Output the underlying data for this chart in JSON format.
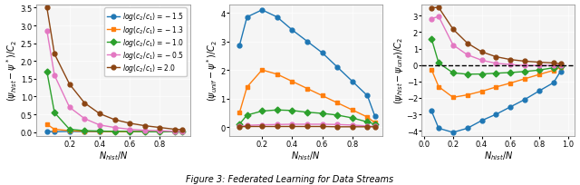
{
  "legend_labels": [
    "$log(c_2/c_1) = -1.5$",
    "$log(c_2/c_1) = -1.3$",
    "$log(c_2/c_1) = -1.0$",
    "$log(c_2/c_1) = -0.5$",
    "$log(c_2/c_1) = 2.0$"
  ],
  "colors": [
    "#1f77b4",
    "#ff7f0e",
    "#2ca02c",
    "#e377c2",
    "#8B4513"
  ],
  "markers": [
    "o",
    "s",
    "D",
    "o",
    "o"
  ],
  "x_values": [
    0.05,
    0.1,
    0.2,
    0.3,
    0.4,
    0.5,
    0.6,
    0.7,
    0.8,
    0.9,
    0.95
  ],
  "plot1_ylabel": "$(\\psi_{hist} - \\psi^*)/C_2$",
  "plot2_ylabel": "$(\\psi_{unif} - \\psi^*)/C_2$",
  "plot3_ylabel": "$(\\psi_{hist} - \\psi_{unif})/C_2$",
  "xlabel": "$N_{hist}/N$",
  "plot1_data": [
    [
      0.02,
      0.01,
      0.02,
      0.01,
      0.01,
      0.01,
      0.01,
      0.01,
      0.01,
      0.01,
      0.01
    ],
    [
      0.22,
      0.08,
      0.04,
      0.02,
      0.02,
      0.01,
      0.01,
      0.01,
      0.01,
      0.01,
      0.01
    ],
    [
      1.7,
      0.55,
      0.08,
      0.04,
      0.03,
      0.02,
      0.02,
      0.01,
      0.01,
      0.01,
      0.01
    ],
    [
      2.85,
      1.6,
      0.7,
      0.38,
      0.2,
      0.13,
      0.08,
      0.05,
      0.04,
      0.02,
      0.02
    ],
    [
      3.5,
      2.2,
      1.35,
      0.82,
      0.52,
      0.35,
      0.25,
      0.18,
      0.13,
      0.08,
      0.07
    ]
  ],
  "plot2_data": [
    [
      2.85,
      3.85,
      4.1,
      3.85,
      3.4,
      3.0,
      2.6,
      2.1,
      1.6,
      1.1,
      0.38
    ],
    [
      0.5,
      1.4,
      2.0,
      1.85,
      1.6,
      1.35,
      1.1,
      0.85,
      0.6,
      0.35,
      0.15
    ],
    [
      0.1,
      0.42,
      0.56,
      0.6,
      0.58,
      0.52,
      0.48,
      0.42,
      0.32,
      0.18,
      0.1
    ],
    [
      0.02,
      0.06,
      0.08,
      0.09,
      0.1,
      0.1,
      0.1,
      0.09,
      0.07,
      0.04,
      0.02
    ],
    [
      0.01,
      0.02,
      0.02,
      0.02,
      0.02,
      0.02,
      0.02,
      0.01,
      0.01,
      0.01,
      0.01
    ]
  ],
  "plot3_data": [
    [
      -2.8,
      -3.85,
      -4.1,
      -3.85,
      -3.38,
      -3.0,
      -2.55,
      -2.1,
      -1.58,
      -1.08,
      -0.38
    ],
    [
      -0.28,
      -1.32,
      -1.97,
      -1.82,
      -1.6,
      -1.34,
      -1.1,
      -0.84,
      -0.58,
      -0.33,
      -0.14
    ],
    [
      1.6,
      0.12,
      -0.48,
      -0.56,
      -0.55,
      -0.5,
      -0.46,
      -0.4,
      -0.31,
      -0.17,
      -0.09
    ],
    [
      2.82,
      2.95,
      1.22,
      0.62,
      0.29,
      0.1,
      0.03,
      -0.04,
      -0.03,
      -0.02,
      0.0
    ],
    [
      3.48,
      3.5,
      2.18,
      1.33,
      0.8,
      0.5,
      0.33,
      0.23,
      0.17,
      0.12,
      0.07
    ]
  ],
  "plot1_ylim": [
    -0.1,
    3.6
  ],
  "plot2_ylim": [
    -0.3,
    4.3
  ],
  "plot3_ylim": [
    -4.3,
    3.7
  ],
  "plot1_yticks": [
    0.0,
    0.5,
    1.0,
    1.5,
    2.0,
    2.5,
    3.0,
    3.5
  ],
  "plot2_yticks": [
    0.0,
    1.0,
    2.0,
    3.0,
    4.0
  ],
  "plot3_yticks": [
    -4.0,
    -3.0,
    -2.0,
    -1.0,
    0.0,
    1.0,
    2.0,
    3.0
  ],
  "plot1_xticks": [
    0.2,
    0.4,
    0.6,
    0.8
  ],
  "plot2_xticks": [
    0.2,
    0.4,
    0.6,
    0.8
  ],
  "plot3_xticks": [
    0.0,
    0.2,
    0.4,
    0.6,
    0.8,
    1.0
  ],
  "figure_title": "Figure 3: Federated Learning for Data Streams",
  "background_color": "#ffffff",
  "axes_facecolor": "#f5f5f5"
}
